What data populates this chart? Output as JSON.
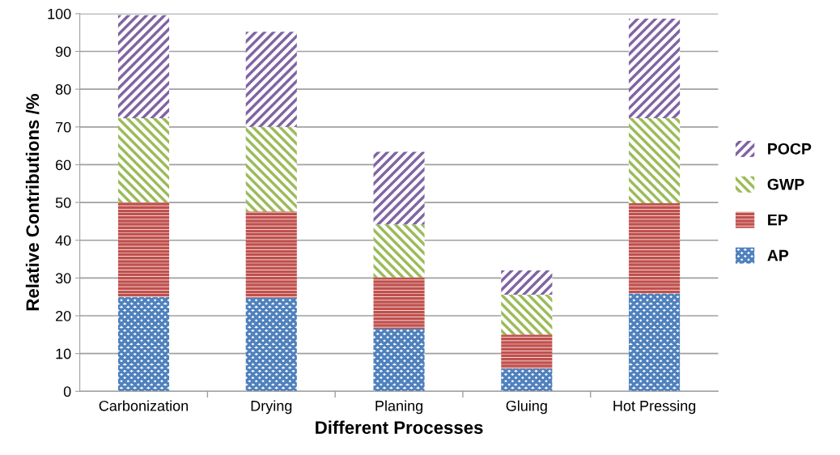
{
  "chart_data": {
    "type": "bar",
    "stacked": true,
    "xlabel": "Different Processes",
    "ylabel": "Relative Contributions /%",
    "categories": [
      "Carbonization",
      "Drying",
      "Planing",
      "Gluing",
      "Hot Pressing"
    ],
    "series": [
      {
        "name": "AP",
        "color": "#4f81bd",
        "values": [
          25,
          24.8,
          16.6,
          6,
          25.9
        ]
      },
      {
        "name": "EP",
        "color": "#c0504d",
        "values": [
          25,
          22.8,
          13.6,
          9,
          23.9
        ]
      },
      {
        "name": "GWP",
        "color": "#9bbb59",
        "values": [
          22.3,
          22.4,
          14,
          10.6,
          22.5
        ]
      },
      {
        "name": "POCP",
        "color": "#8064a2",
        "values": [
          27.3,
          25.2,
          19.2,
          6.4,
          26.4
        ]
      }
    ],
    "ylim": [
      0,
      100
    ],
    "yticks": [
      0,
      10,
      20,
      30,
      40,
      50,
      60,
      70,
      80,
      90,
      100
    ],
    "grid": "y",
    "legend": "right"
  }
}
